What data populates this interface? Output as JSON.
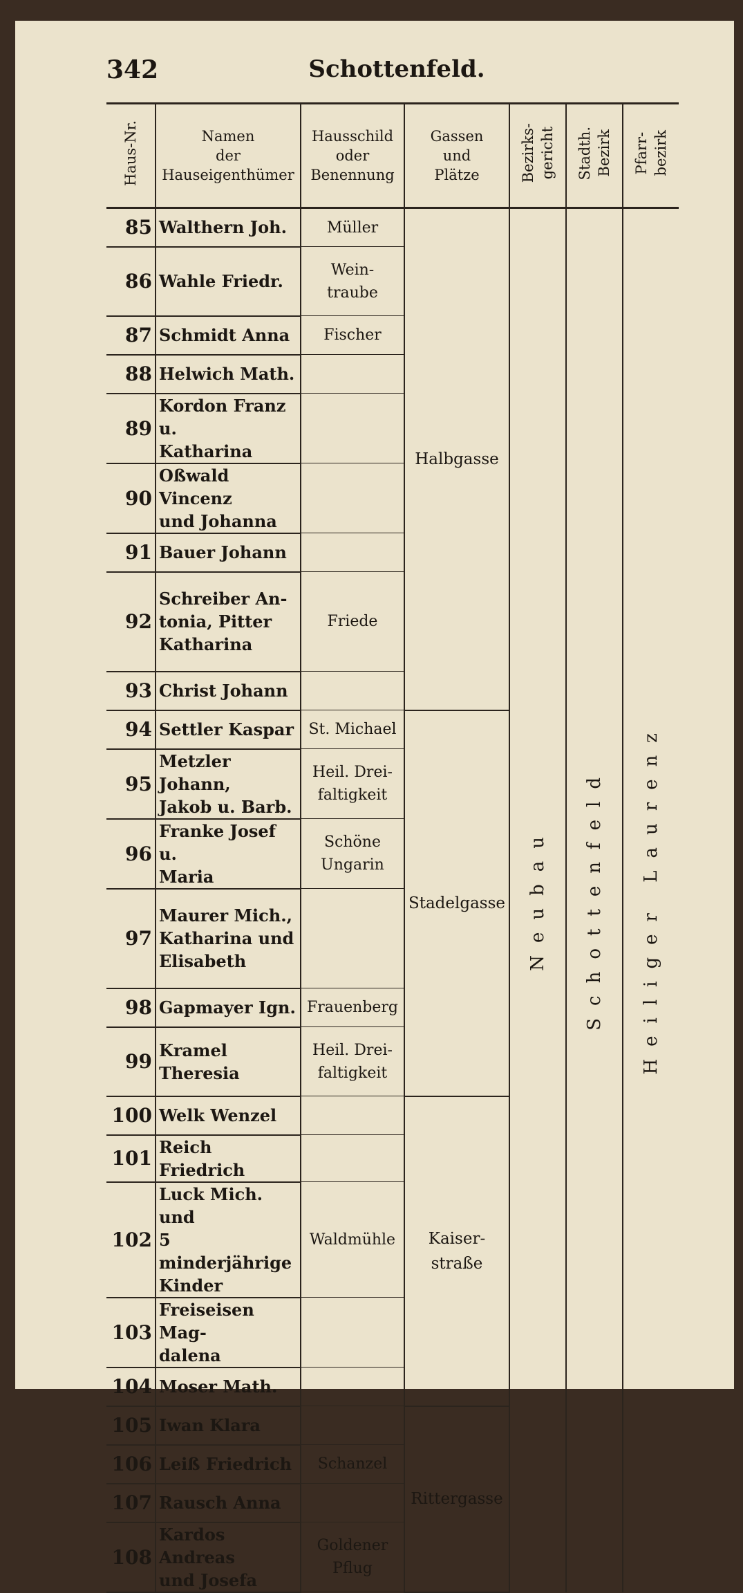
{
  "header": {
    "page_number": "342",
    "title": "Schottenfeld."
  },
  "columns": {
    "number": [
      "Haus-Nr."
    ],
    "owner": [
      "Namen",
      "der",
      "Hauseigenthümer"
    ],
    "sign": [
      "Hausschild",
      "oder",
      "Benennung"
    ],
    "street": [
      "Gassen",
      "und",
      "Plätze"
    ],
    "court": [
      "Bezirks-",
      "gericht"
    ],
    "district": [
      "Stadth.",
      "Bezirk"
    ],
    "parish": [
      "Pfarr-",
      "bezirk"
    ]
  },
  "court": "Neubau",
  "district": "Schottenfeld",
  "parish": "Heiliger Laurenz",
  "groups": [
    {
      "street": [
        "Halbgasse"
      ],
      "rows": [
        {
          "number": 85,
          "owner": [
            "Walthern Joh."
          ],
          "sign": [
            "Müller"
          ]
        },
        {
          "number": 86,
          "owner": [
            "Wahle Friedr."
          ],
          "sign": [
            "Wein-",
            "traube"
          ]
        },
        {
          "number": 87,
          "owner": [
            "Schmidt Anna"
          ],
          "sign": [
            "Fischer"
          ]
        },
        {
          "number": 88,
          "owner": [
            "Helwich Math."
          ]
        },
        {
          "number": 89,
          "owner": [
            "Kordon Franz u.",
            "Katharina"
          ]
        },
        {
          "number": 90,
          "owner": [
            "Oßwald Vincenz",
            "und Johanna"
          ]
        },
        {
          "number": 91,
          "owner": [
            "Bauer Johann"
          ]
        },
        {
          "number": 92,
          "owner": [
            "Schreiber An-",
            "tonia, Pitter",
            "Katharina"
          ],
          "sign": [
            "Friede"
          ]
        },
        {
          "number": 93,
          "owner": [
            "Christ Johann"
          ]
        }
      ]
    },
    {
      "street": [
        "Stadelgasse"
      ],
      "rows": [
        {
          "number": 94,
          "owner": [
            "Settler Kaspar"
          ],
          "sign": [
            "St. Michael"
          ]
        },
        {
          "number": 95,
          "owner": [
            "Metzler Johann,",
            "Jakob u. Barb."
          ],
          "sign": [
            "Heil. Drei-",
            "faltigkeit"
          ]
        },
        {
          "number": 96,
          "owner": [
            "Franke Josef u.",
            "Maria"
          ],
          "sign": [
            "Schöne",
            "Ungarin"
          ]
        },
        {
          "number": 97,
          "owner": [
            "Maurer Mich.,",
            "Katharina und",
            "Elisabeth"
          ]
        },
        {
          "number": 98,
          "owner": [
            "Gapmayer Ign."
          ],
          "sign": [
            "Frauenberg"
          ]
        },
        {
          "number": 99,
          "owner": [
            "Kramel Theresia"
          ],
          "sign": [
            "Heil. Drei-",
            "faltigkeit"
          ]
        }
      ]
    },
    {
      "street": [
        "Kaiser-",
        "straße"
      ],
      "rows": [
        {
          "number": 100,
          "owner": [
            "Welk Wenzel"
          ]
        },
        {
          "number": 101,
          "owner": [
            "Reich Friedrich"
          ]
        },
        {
          "number": 102,
          "owner": [
            "Luck Mich. und",
            "5 minderjährige",
            "Kinder"
          ],
          "sign": [
            "Waldmühle"
          ]
        },
        {
          "number": 103,
          "owner": [
            "Freiseisen Mag-",
            "dalena"
          ]
        },
        {
          "number": 104,
          "owner": [
            "Moser Math."
          ]
        }
      ]
    },
    {
      "street": [
        "Rittergasse"
      ],
      "rows": [
        {
          "number": 105,
          "owner": [
            "Iwan Klara"
          ]
        },
        {
          "number": 106,
          "owner": [
            "Leiß Friedrich"
          ],
          "sign": [
            "Schanzel"
          ]
        },
        {
          "number": 107,
          "owner": [
            "Rausch Anna"
          ]
        },
        {
          "number": 108,
          "owner": [
            "Kardos Andreas",
            "und Josefa"
          ],
          "sign": [
            "Goldener",
            "Pflug"
          ]
        }
      ]
    }
  ]
}
